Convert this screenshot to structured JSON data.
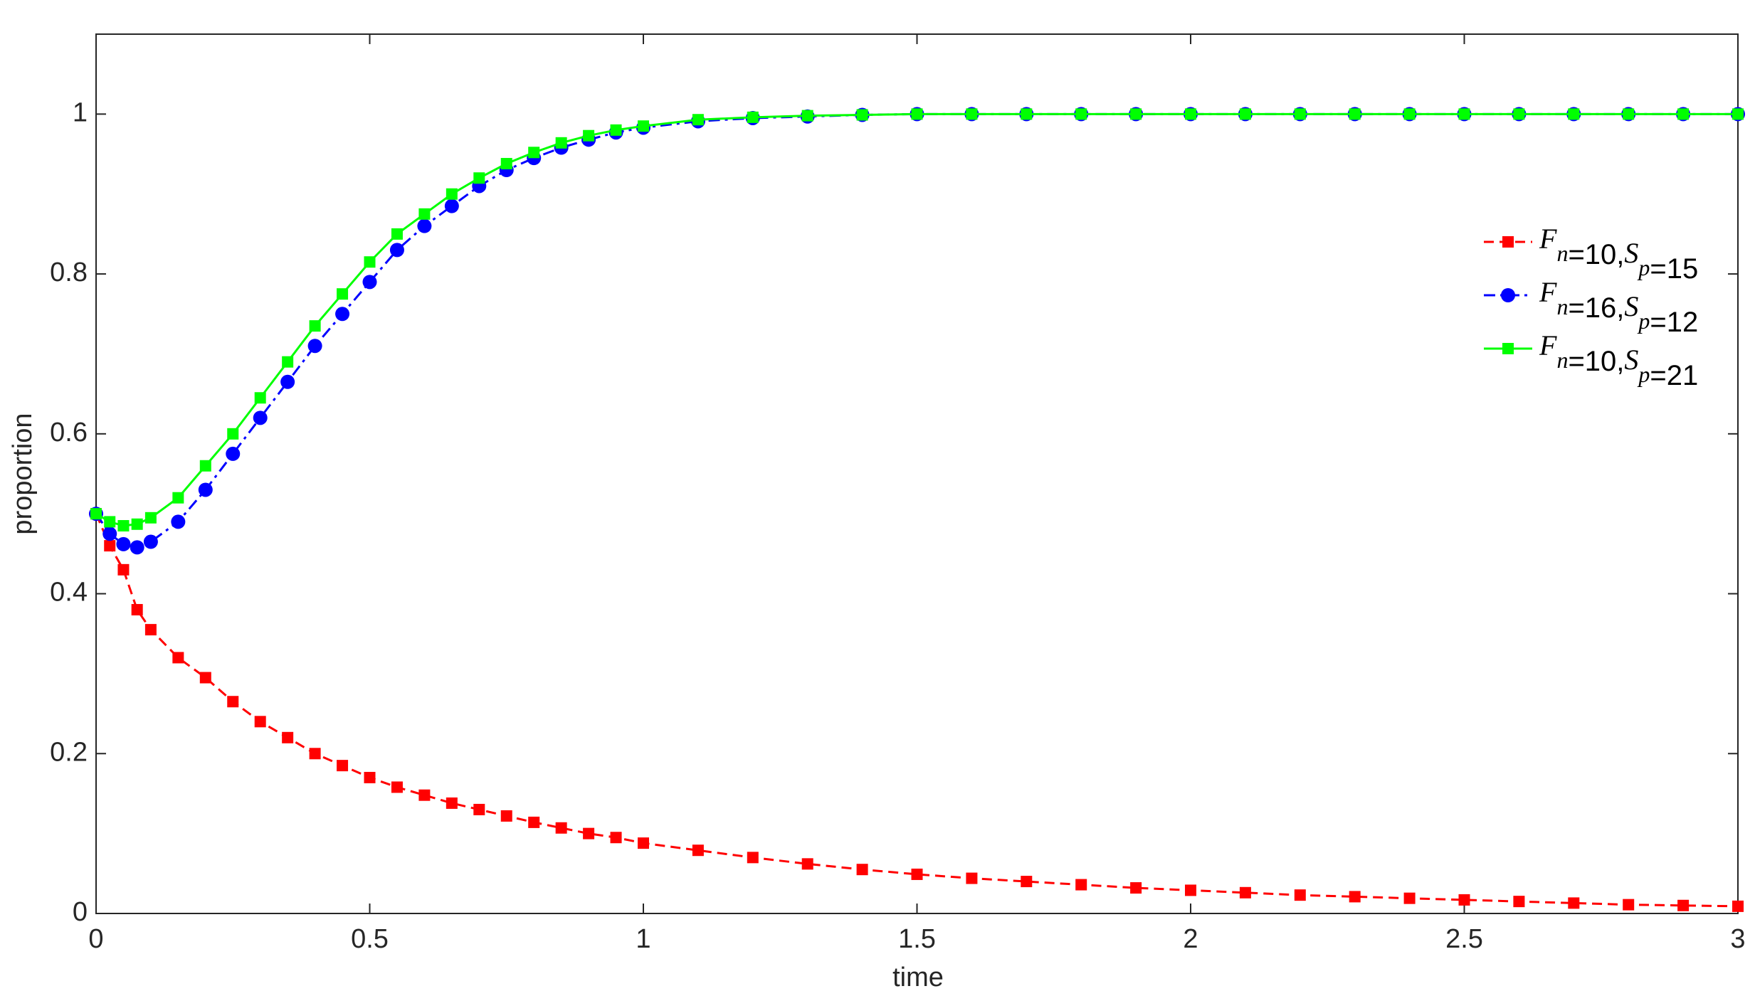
{
  "chart_data": {
    "type": "line",
    "xlabel": "time",
    "ylabel": "proportion",
    "xlim": [
      0,
      3
    ],
    "ylim": [
      0,
      1.1
    ],
    "xticks": [
      0,
      0.5,
      1,
      1.5,
      2,
      2.5,
      3
    ],
    "yticks": [
      0,
      0.2,
      0.4,
      0.6,
      0.8,
      1
    ],
    "grid": false,
    "legend": "upper right",
    "x": [
      0,
      0.025,
      0.05,
      0.075,
      0.1,
      0.15,
      0.2,
      0.25,
      0.3,
      0.35,
      0.4,
      0.45,
      0.5,
      0.55,
      0.6,
      0.65,
      0.7,
      0.75,
      0.8,
      0.85,
      0.9,
      0.95,
      1.0,
      1.1,
      1.2,
      1.3,
      1.4,
      1.5,
      1.6,
      1.7,
      1.8,
      1.9,
      2.0,
      2.1,
      2.2,
      2.3,
      2.4,
      2.5,
      2.6,
      2.7,
      2.8,
      2.9,
      3.0
    ],
    "series": [
      {
        "name": "Fn=10,Sp=15",
        "color": "#ff0000",
        "line_style": "dashed",
        "marker": "square",
        "values": [
          0.5,
          0.46,
          0.43,
          0.38,
          0.355,
          0.32,
          0.295,
          0.265,
          0.24,
          0.22,
          0.2,
          0.185,
          0.17,
          0.158,
          0.148,
          0.138,
          0.13,
          0.122,
          0.114,
          0.107,
          0.1,
          0.095,
          0.088,
          0.079,
          0.07,
          0.062,
          0.055,
          0.049,
          0.044,
          0.04,
          0.036,
          0.032,
          0.029,
          0.026,
          0.023,
          0.021,
          0.019,
          0.017,
          0.015,
          0.013,
          0.011,
          0.01,
          0.009
        ]
      },
      {
        "name": "Fn=16,Sp=12",
        "color": "#0000ff",
        "line_style": "dashdot",
        "marker": "circle",
        "values": [
          0.5,
          0.475,
          0.462,
          0.458,
          0.465,
          0.49,
          0.53,
          0.575,
          0.62,
          0.665,
          0.71,
          0.75,
          0.79,
          0.83,
          0.86,
          0.885,
          0.91,
          0.93,
          0.945,
          0.958,
          0.968,
          0.977,
          0.983,
          0.991,
          0.995,
          0.997,
          0.999,
          1,
          1,
          1,
          1,
          1,
          1,
          1,
          1,
          1,
          1,
          1,
          1,
          1,
          1,
          1,
          1
        ]
      },
      {
        "name": "Fn=10,Sp=21",
        "color": "#00ff00",
        "line_style": "solid",
        "marker": "square",
        "values": [
          0.5,
          0.49,
          0.485,
          0.487,
          0.495,
          0.52,
          0.56,
          0.6,
          0.645,
          0.69,
          0.735,
          0.775,
          0.815,
          0.85,
          0.875,
          0.9,
          0.92,
          0.938,
          0.952,
          0.964,
          0.973,
          0.98,
          0.985,
          0.993,
          0.996,
          0.998,
          0.999,
          1,
          1,
          1,
          1,
          1,
          1,
          1,
          1,
          1,
          1,
          1,
          1,
          1,
          1,
          1,
          1
        ]
      }
    ]
  }
}
